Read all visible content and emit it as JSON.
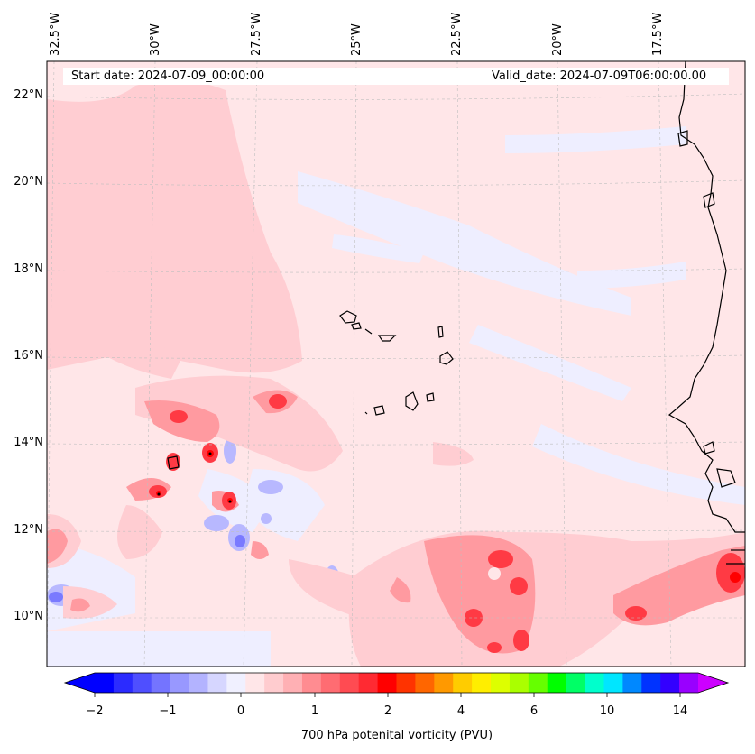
{
  "header": {
    "start": "Start date: 2024-07-09_00:00:00",
    "valid": "Valid_date: 2024-07-09T06:00:00.00"
  },
  "map": {
    "lon_labels": [
      "32.5°W",
      "30°W",
      "27.5°W",
      "25°W",
      "22.5°W",
      "20°W",
      "17.5°W"
    ],
    "lat_labels": [
      "22°N",
      "20°N",
      "18°N",
      "16°N",
      "14°N",
      "12°N",
      "10°N"
    ],
    "background_color": "#ffe6e8",
    "coast_color": "#000000"
  },
  "colorbar": {
    "label": "700 hPa potenital vorticity (PVU)",
    "ticks": [
      "−2",
      "−1",
      "0",
      "1",
      "2",
      "4",
      "6",
      "10",
      "14"
    ],
    "colors": [
      "#0000ff",
      "#2b2bff",
      "#4f4fff",
      "#7474ff",
      "#9898ff",
      "#b3b3ff",
      "#d6d6ff",
      "#f0f0ff",
      "#ffe6e8",
      "#ffcccf",
      "#ffb0b4",
      "#ff8c91",
      "#ff6c72",
      "#ff4b52",
      "#ff2a32",
      "#ff0000",
      "#ff3300",
      "#ff6600",
      "#ff9900",
      "#ffcc00",
      "#ffee00",
      "#ddff00",
      "#aaff00",
      "#66ff00",
      "#00ff00",
      "#00ff66",
      "#00ffcc",
      "#00e6ff",
      "#0088ff",
      "#0033ff",
      "#3300ff",
      "#9900ff"
    ],
    "under_color": "#0000ff",
    "over_color": "#cc00ff"
  }
}
